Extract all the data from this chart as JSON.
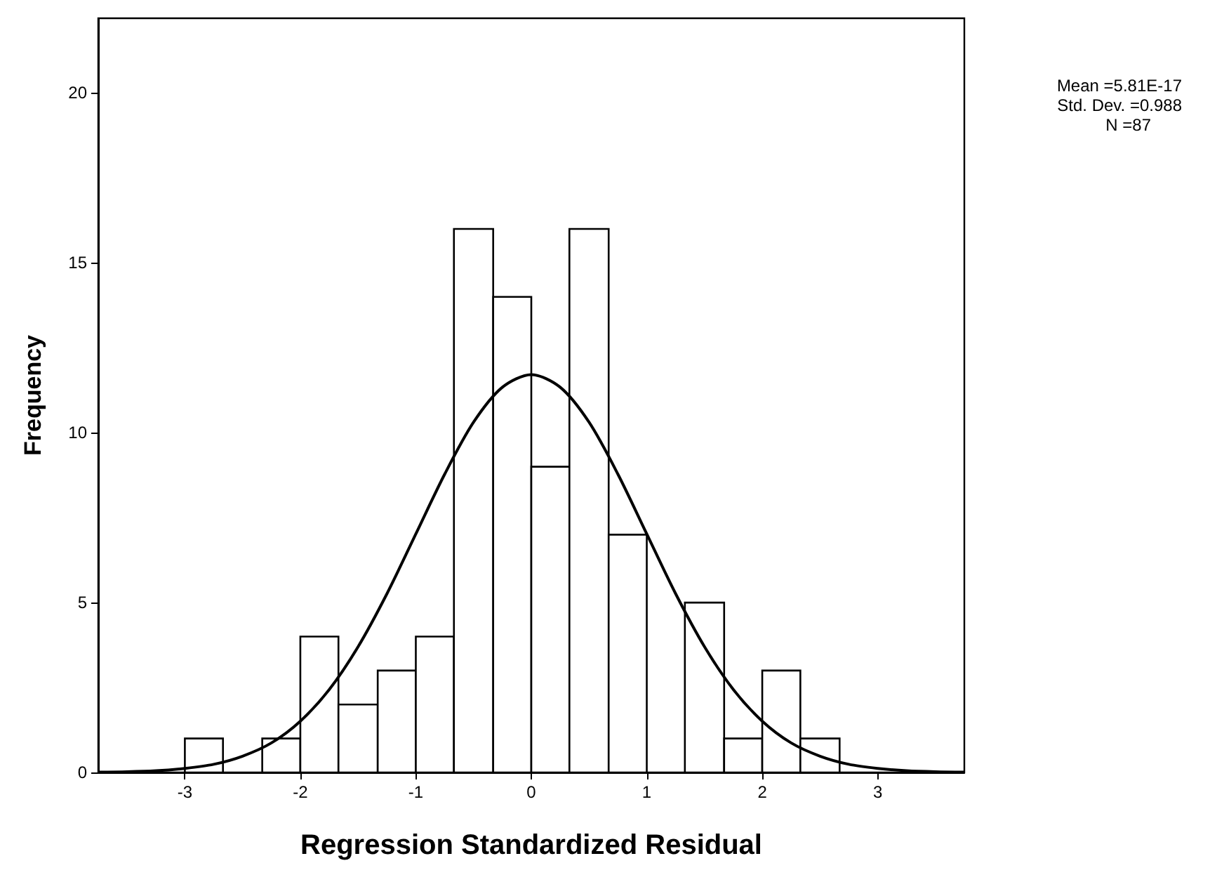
{
  "chart_data": {
    "type": "histogram",
    "xlabel": "Regression Standardized Residual",
    "ylabel": "Frequency",
    "bins": [
      -3,
      -2.67,
      -2.33,
      -2,
      -1.67,
      -1.33,
      -1,
      -0.67,
      -0.33,
      0,
      0.33,
      0.67,
      1,
      1.33,
      1.67,
      2,
      2.33,
      2.67
    ],
    "values": [
      1,
      0,
      1,
      4,
      2,
      3,
      4,
      16,
      14,
      9,
      16,
      7,
      0,
      5,
      1,
      3,
      1
    ],
    "color": "#ffffff",
    "series": [
      {
        "type": "line",
        "color": "#000000",
        "x": [
          -3.75,
          -3.5,
          -3.25,
          -3,
          -2.75,
          -2.5,
          -2.25,
          -2,
          -1.75,
          -1.5,
          -1.25,
          -1,
          -0.75,
          -0.5,
          -0.25,
          0,
          0.25,
          0.5,
          0.75,
          1,
          1.25,
          1.5,
          1.75,
          2,
          2.25,
          2.5,
          2.75,
          3,
          3.25,
          3.5,
          3.75
        ],
        "values": [
          0.01,
          0.02,
          0.05,
          0.12,
          0.24,
          0.48,
          0.87,
          1.51,
          2.44,
          3.7,
          5.26,
          7.02,
          8.78,
          10.31,
          11.34,
          11.71,
          11.34,
          10.31,
          8.78,
          7.02,
          5.26,
          3.7,
          2.44,
          1.51,
          0.87,
          0.48,
          0.24,
          0.12,
          0.05,
          0.02,
          0.01
        ]
      }
    ],
    "xlim": [
      -3.75,
      3.75
    ],
    "ylim": [
      0,
      22.2
    ],
    "xticks": [
      -3,
      -2,
      -1,
      0,
      1,
      2,
      3
    ],
    "yticks": [
      0,
      5,
      10,
      15,
      20
    ],
    "grid": false,
    "marker": "none",
    "line_style": "solid",
    "annotations": [
      "Mean =5.81E-17",
      "Std. Dev. =0.988",
      "N =87"
    ]
  }
}
